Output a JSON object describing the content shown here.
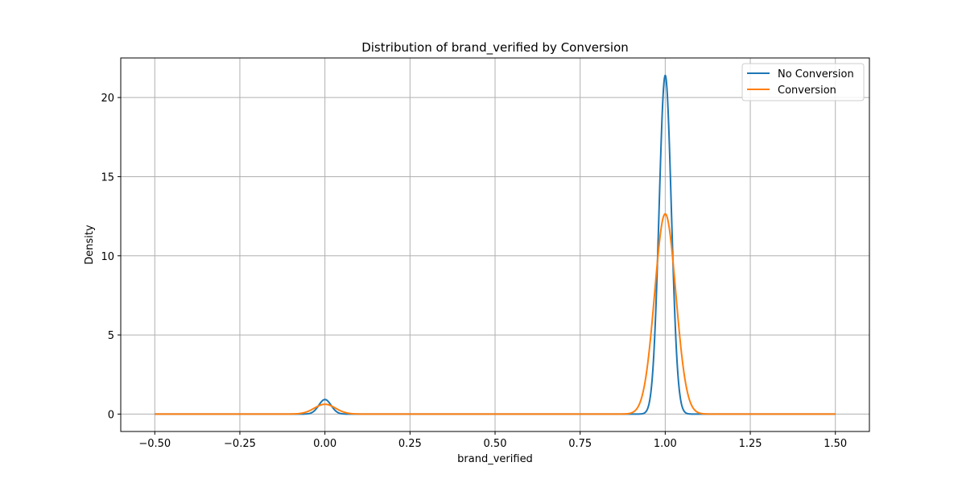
{
  "chart_data": {
    "type": "line",
    "title": "Distribution of brand_verified by Conversion",
    "xlabel": "brand_verified",
    "ylabel": "Density",
    "xlim": [
      -0.6,
      1.6
    ],
    "ylim": [
      -1.1,
      22.5
    ],
    "xticks": [
      -0.5,
      -0.25,
      0.0,
      0.25,
      0.5,
      0.75,
      1.0,
      1.25,
      1.5
    ],
    "xtick_labels": [
      "−0.50",
      "−0.25",
      "0.00",
      "0.25",
      "0.50",
      "0.75",
      "1.00",
      "1.25",
      "1.50"
    ],
    "yticks": [
      0,
      5,
      10,
      15,
      20
    ],
    "ytick_labels": [
      "0",
      "5",
      "10",
      "15",
      "20"
    ],
    "grid": true,
    "legend_position": "top-right",
    "x_range": [
      -0.5,
      1.5
    ],
    "series": [
      {
        "name": "No Conversion",
        "color": "#1f77b4",
        "components": [
          {
            "center": 0.0,
            "peak": 0.92,
            "sigma": 0.018
          },
          {
            "center": 1.0,
            "peak": 21.4,
            "sigma": 0.018
          }
        ]
      },
      {
        "name": "Conversion",
        "color": "#ff7f0e",
        "components": [
          {
            "center": 0.0,
            "peak": 0.62,
            "sigma": 0.031
          },
          {
            "center": 1.0,
            "peak": 12.65,
            "sigma": 0.031
          }
        ]
      }
    ]
  }
}
